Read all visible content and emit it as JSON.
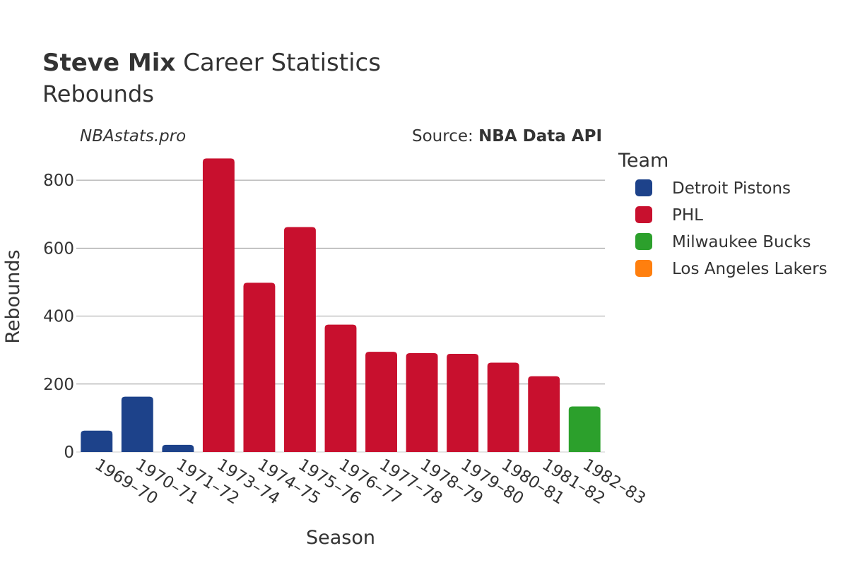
{
  "title_player": "Steve Mix",
  "title_rest": " Career Statistics",
  "subtitle": "Rebounds",
  "watermark": "NBAstats.pro",
  "source_prefix": "Source: ",
  "source_name": "NBA Data API",
  "chart_data": {
    "type": "bar",
    "xlabel": "Season",
    "ylabel": "Rebounds",
    "ylim": [
      0,
      900
    ],
    "yticks": [
      0,
      200,
      400,
      600,
      800
    ],
    "grid": true,
    "legend_title": "Team",
    "legend_position": "right",
    "categories": [
      "1969–70",
      "1970–71",
      "1971–72",
      "1973–74",
      "1974–75",
      "1975–76",
      "1976–77",
      "1977–78",
      "1978–79",
      "1979–80",
      "1980–81",
      "1981–82",
      "1982–83"
    ],
    "values": [
      63,
      163,
      21,
      864,
      498,
      662,
      375,
      295,
      291,
      289,
      263,
      223,
      134
    ],
    "teams": [
      "Detroit Pistons",
      "Detroit Pistons",
      "Detroit Pistons",
      "PHL",
      "PHL",
      "PHL",
      "PHL",
      "PHL",
      "PHL",
      "PHL",
      "PHL",
      "PHL",
      "Milwaukee Bucks"
    ],
    "legend": [
      {
        "name": "Detroit Pistons",
        "color": "#1d428a"
      },
      {
        "name": "PHL",
        "color": "#c8102e"
      },
      {
        "name": "Milwaukee Bucks",
        "color": "#2ca02c"
      },
      {
        "name": "Los Angeles Lakers",
        "color": "#ff7f0e"
      }
    ]
  }
}
